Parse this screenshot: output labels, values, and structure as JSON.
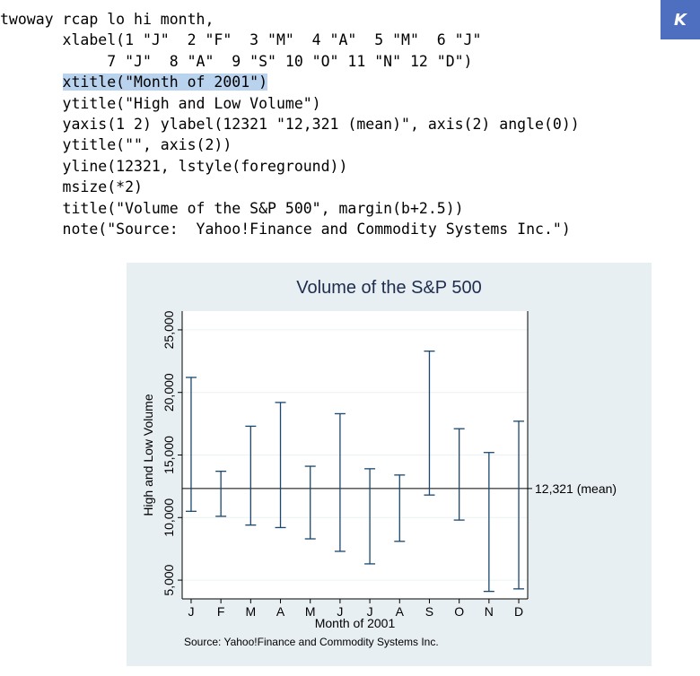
{
  "code": {
    "lines": [
      "twoway rcap lo hi month,",
      "       xlabel(1 \"J\"  2 \"F\"  3 \"M\"  4 \"A\"  5 \"M\"  6 \"J\"",
      "            7 \"J\"  8 \"A\"  9 \"S\" 10 \"O\" 11 \"N\" 12 \"D\")",
      "xtitle(\"Month of 2001\")",
      "       ytitle(\"High and Low Volume\")",
      "       yaxis(1 2) ylabel(12321 \"12,321 (mean)\", axis(2) angle(0))",
      "       ytitle(\"\", axis(2))",
      "       yline(12321, lstyle(foreground))",
      "       msize(*2)",
      "       title(\"Volume of the S&P 500\", margin(b+2.5))",
      "       note(\"Source:  Yahoo!Finance and Commodity Systems Inc.\")"
    ],
    "highlight_prefix": "       "
  },
  "badge": {
    "label": "K",
    "color": "#4e6fc0"
  },
  "chart_data": {
    "type": "rcap",
    "title": "Volume of the S&P 500",
    "xlabel": "Month of 2001",
    "ylabel": "High and Low Volume",
    "note": "Source:  Yahoo!Finance and Commodity Systems Inc.",
    "categories": [
      "J",
      "F",
      "M",
      "A",
      "M",
      "J",
      "J",
      "A",
      "S",
      "O",
      "N",
      "D"
    ],
    "x": [
      1,
      2,
      3,
      4,
      5,
      6,
      7,
      8,
      9,
      10,
      11,
      12
    ],
    "series": [
      {
        "name": "lo",
        "values": [
          10500,
          10100,
          9400,
          9200,
          8300,
          7300,
          6300,
          8100,
          11800,
          9800,
          4100,
          4300
        ]
      },
      {
        "name": "hi",
        "values": [
          21200,
          13700,
          17300,
          19200,
          14100,
          18300,
          13900,
          13400,
          23300,
          17100,
          15200,
          17700
        ]
      }
    ],
    "yticks": [
      5000,
      10000,
      15000,
      20000,
      25000
    ],
    "ytick_labels": [
      "5,000",
      "10,000",
      "15,000",
      "20,000",
      "25,000"
    ],
    "ylim": [
      3500,
      26500
    ],
    "xlim": [
      0.7,
      12.3
    ],
    "yline": {
      "value": 12321,
      "label": "12,321 (mean)"
    },
    "grid": "horizontal",
    "colors": {
      "caps": "#1a476f",
      "frame": "#000000",
      "grid": "#eaf2f3",
      "background": "#e8eff3",
      "plot": "#ffffff",
      "title": "#1e2d4e"
    }
  }
}
